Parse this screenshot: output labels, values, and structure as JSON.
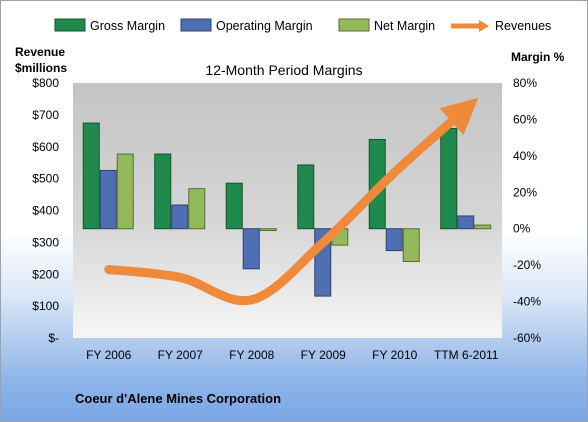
{
  "chart_data": {
    "type": "bar",
    "title": "12-Month Period Margins",
    "categories": [
      "FY 2006",
      "FY 2007",
      "FY 2008",
      "FY 2009",
      "FY 2010",
      "TTM 6-2011"
    ],
    "series": [
      {
        "name": "Gross Margin",
        "axis": "right",
        "color": "#1f8a4c",
        "values": [
          58,
          41,
          25,
          35,
          49,
          55
        ]
      },
      {
        "name": "Operating Margin",
        "axis": "right",
        "color": "#4f6fb5",
        "values": [
          32,
          13,
          -22,
          -37,
          -12,
          7
        ]
      },
      {
        "name": "Net Margin",
        "axis": "right",
        "color": "#93b95a",
        "values": [
          41,
          22,
          -1,
          -9,
          -18,
          2
        ]
      },
      {
        "name": "Revenues",
        "axis": "left",
        "type": "line",
        "color": "#ee8a3a",
        "values": [
          215,
          190,
          120,
          300,
          520,
          720
        ]
      }
    ],
    "left_axis": {
      "label_line1": "Revenue",
      "label_line2": "$millions",
      "min": 0,
      "max": 800,
      "step": 100,
      "ticks": [
        "$-",
        "$100",
        "$200",
        "$300",
        "$400",
        "$500",
        "$600",
        "$700",
        "$800"
      ]
    },
    "right_axis": {
      "label": "Margin  %",
      "min": -60,
      "max": 80,
      "step": 20,
      "ticks": [
        "-60%",
        "-40%",
        "-20%",
        "0%",
        "20%",
        "40%",
        "60%",
        "80%"
      ]
    },
    "legend_position": "top",
    "grid": false,
    "footer": "Coeur d'Alene Mines Corporation"
  }
}
